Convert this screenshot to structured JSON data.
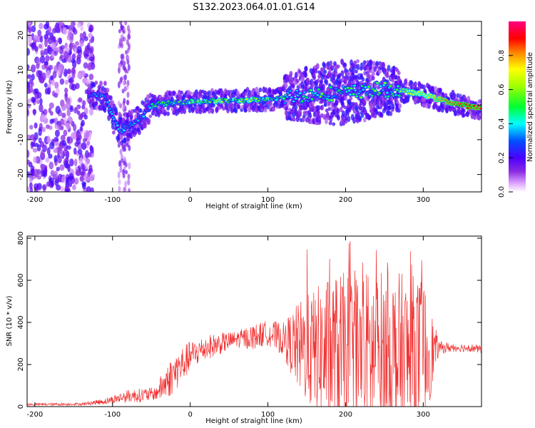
{
  "title": "S132.2023.064.01.01.G14",
  "colors": {
    "snr_line": "#f03030",
    "axis": "#000000"
  },
  "chart_data": [
    {
      "type": "heatmap",
      "xlabel": "Height of straight line (km)",
      "ylabel": "Frequency (Hz)",
      "xlim": [
        -210,
        375
      ],
      "ylim": [
        -25,
        24
      ],
      "xticks": [
        "-200",
        "-100",
        "0",
        "100",
        "200",
        "300"
      ],
      "yticks": [
        "-20",
        "-10",
        "0",
        "10",
        "20"
      ],
      "colorbar": {
        "label": "Normalized spectral amplitude",
        "range": [
          0,
          1
        ],
        "ticks": [
          "0.0",
          "0.2",
          "0.4",
          "0.6",
          "0.8"
        ],
        "colormap": "gist_rainbow"
      },
      "ridge_frequency_hz": {
        "x": [
          -130,
          -110,
          -100,
          -90,
          -80,
          -70,
          -60,
          -50,
          0,
          100,
          150,
          200,
          240,
          275,
          300,
          330,
          360,
          375
        ],
        "y": [
          3,
          2.5,
          -3,
          -8,
          -6,
          -5,
          -3,
          0,
          1,
          1.5,
          3,
          3.5,
          4.5,
          4,
          3,
          1,
          -0.5,
          -1
        ]
      },
      "broadband_noise_x_range": [
        -210,
        -125
      ]
    },
    {
      "type": "line",
      "xlabel": "Height of straight line (km)",
      "ylabel": "SNR (10 * v/v)",
      "xlim": [
        -210,
        375
      ],
      "ylim": [
        0,
        810
      ],
      "xticks": [
        "-200",
        "-100",
        "0",
        "100",
        "200",
        "300"
      ],
      "yticks": [
        "0",
        "200",
        "400",
        "600",
        "800"
      ],
      "series": [
        {
          "envelope_x": [
            -210,
            -140,
            -110,
            -80,
            -60,
            -45,
            -30,
            -10,
            0,
            20,
            40,
            60,
            80,
            100,
            120,
            140,
            160,
            180,
            200,
            220,
            240,
            260,
            280,
            300,
            320,
            340,
            360,
            375
          ],
          "envelope_mean": [
            10,
            12,
            25,
            50,
            55,
            60,
            120,
            200,
            240,
            280,
            300,
            320,
            330,
            350,
            320,
            280,
            260,
            250,
            240,
            230,
            240,
            230,
            230,
            240,
            280,
            280,
            280,
            270
          ],
          "envelope_spread": [
            6,
            6,
            15,
            30,
            35,
            30,
            90,
            90,
            70,
            60,
            50,
            40,
            60,
            60,
            80,
            220,
            300,
            380,
            400,
            420,
            420,
            420,
            400,
            380,
            30,
            20,
            20,
            20
          ],
          "peak_max": 810
        }
      ]
    }
  ]
}
